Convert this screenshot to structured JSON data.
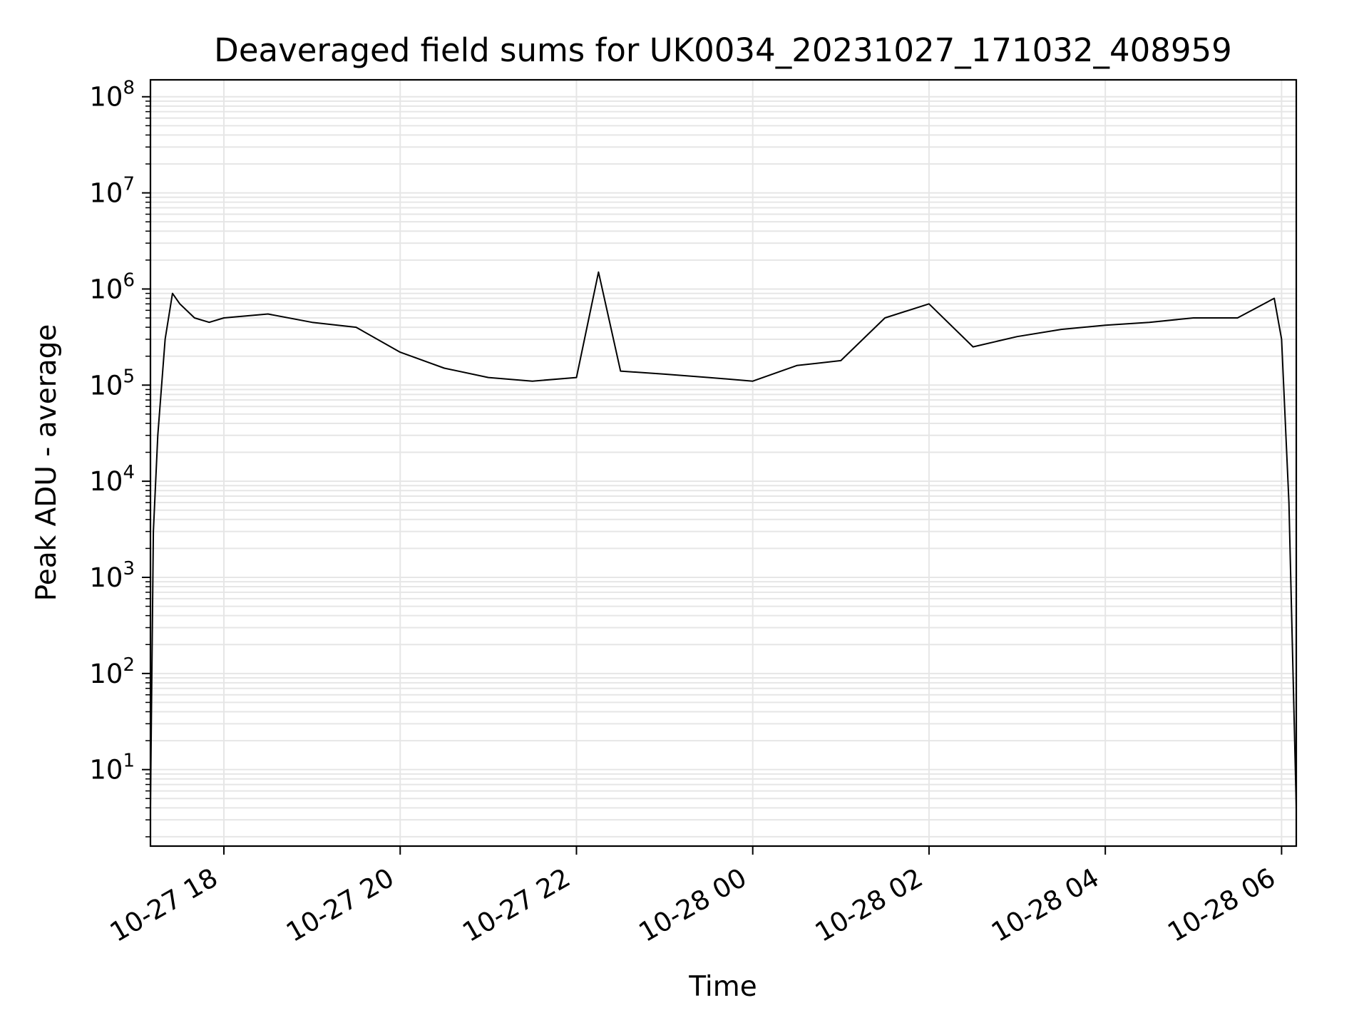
{
  "chart_data": {
    "type": "line",
    "title": "Deaveraged field sums for UK0034_20231027_171032_408959",
    "xlabel": "Time",
    "ylabel": "Peak ADU - average",
    "yscale": "log",
    "ylim": [
      1.6,
      150000000
    ],
    "xlim": [
      "2023-10-27 17:10",
      "2023-10-28 06:10"
    ],
    "grid": true,
    "line_color": "#000000",
    "x_tick_labels": [
      "10-27 18",
      "10-27 20",
      "10-27 22",
      "10-28 00",
      "10-28 02",
      "10-28 04",
      "10-28 06"
    ],
    "x_tick_values": [
      "2023-10-27 18:00",
      "2023-10-27 20:00",
      "2023-10-27 22:00",
      "2023-10-28 00:00",
      "2023-10-28 02:00",
      "2023-10-28 04:00",
      "2023-10-28 06:00"
    ],
    "y_tick_labels": [
      {
        "base": "10",
        "exp": "1"
      },
      {
        "base": "10",
        "exp": "2"
      },
      {
        "base": "10",
        "exp": "3"
      },
      {
        "base": "10",
        "exp": "4"
      },
      {
        "base": "10",
        "exp": "5"
      },
      {
        "base": "10",
        "exp": "6"
      },
      {
        "base": "10",
        "exp": "7"
      },
      {
        "base": "10",
        "exp": "8"
      }
    ],
    "y_tick_values": [
      10,
      100,
      1000,
      10000,
      100000,
      1000000,
      10000000,
      100000000
    ],
    "series": [
      {
        "x": [
          "2023-10-27 17:10",
          "2023-10-27 17:12",
          "2023-10-27 17:15",
          "2023-10-27 17:20",
          "2023-10-27 17:25",
          "2023-10-27 17:30",
          "2023-10-27 17:40",
          "2023-10-27 17:50",
          "2023-10-27 18:00",
          "2023-10-27 18:30",
          "2023-10-27 19:00",
          "2023-10-27 19:30",
          "2023-10-27 20:00",
          "2023-10-27 20:30",
          "2023-10-27 21:00",
          "2023-10-27 21:30",
          "2023-10-27 22:00",
          "2023-10-27 22:15",
          "2023-10-27 22:30",
          "2023-10-27 23:00",
          "2023-10-27 23:30",
          "2023-10-28 00:00",
          "2023-10-28 00:30",
          "2023-10-28 01:00",
          "2023-10-28 01:30",
          "2023-10-28 02:00",
          "2023-10-28 02:30",
          "2023-10-28 03:00",
          "2023-10-28 03:30",
          "2023-10-28 04:00",
          "2023-10-28 04:30",
          "2023-10-28 05:00",
          "2023-10-28 05:30",
          "2023-10-28 05:55",
          "2023-10-28 06:00",
          "2023-10-28 06:05",
          "2023-10-28 06:10"
        ],
        "y": [
          4,
          3000,
          30000,
          300000,
          900000,
          700000,
          500000,
          450000,
          500000,
          550000,
          450000,
          400000,
          220000,
          150000,
          120000,
          110000,
          120000,
          1500000,
          140000,
          130000,
          120000,
          110000,
          160000,
          180000,
          500000,
          700000,
          250000,
          320000,
          380000,
          420000,
          450000,
          500000,
          500000,
          800000,
          300000,
          6000,
          4
        ]
      }
    ]
  }
}
